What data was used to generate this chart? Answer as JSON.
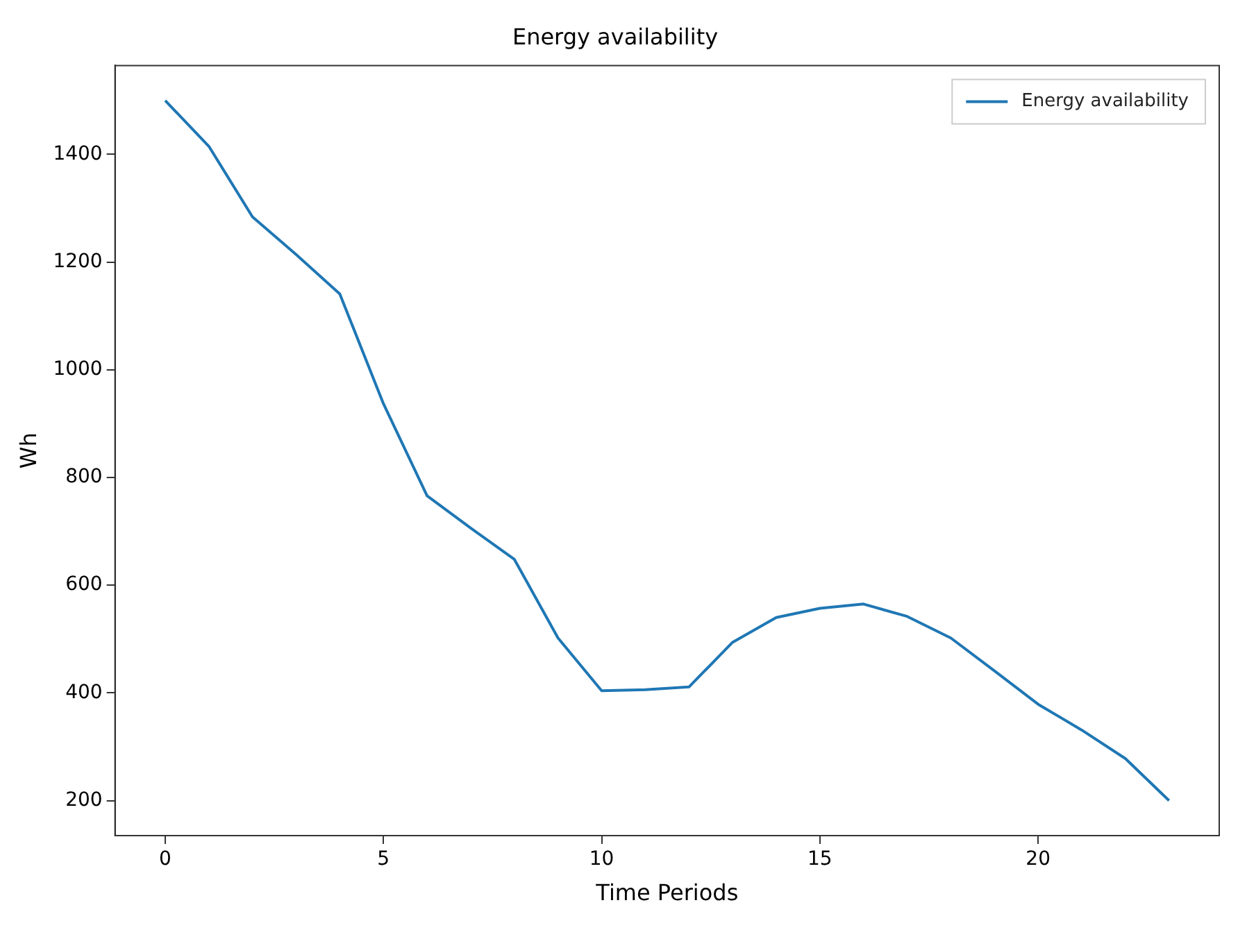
{
  "chart_data": {
    "type": "line",
    "title": "Energy availability",
    "xlabel": "Time Periods",
    "ylabel": "Wh",
    "x": [
      0,
      1,
      2,
      3,
      4,
      5,
      6,
      7,
      8,
      9,
      10,
      11,
      12,
      13,
      14,
      15,
      16,
      17,
      18,
      19,
      20,
      21,
      22,
      23
    ],
    "series": [
      {
        "name": "Energy availability",
        "color": "#1f77b4",
        "values": [
          1500,
          1415,
          1284,
          1214,
          1141,
          937,
          766,
          706,
          648,
          502,
          404,
          406,
          411,
          494,
          540,
          557,
          565,
          542,
          502,
          441,
          379,
          331,
          278,
          200
        ]
      }
    ],
    "xlim": [
      -1.15,
      24.15
    ],
    "xticks": [
      0,
      5,
      10,
      15,
      20
    ],
    "ylim": [
      135,
      1565
    ],
    "yticks": [
      200,
      400,
      600,
      800,
      1000,
      1200,
      1400
    ],
    "grid": false,
    "legend": "top right",
    "marker": "none",
    "line_style": "solid"
  }
}
